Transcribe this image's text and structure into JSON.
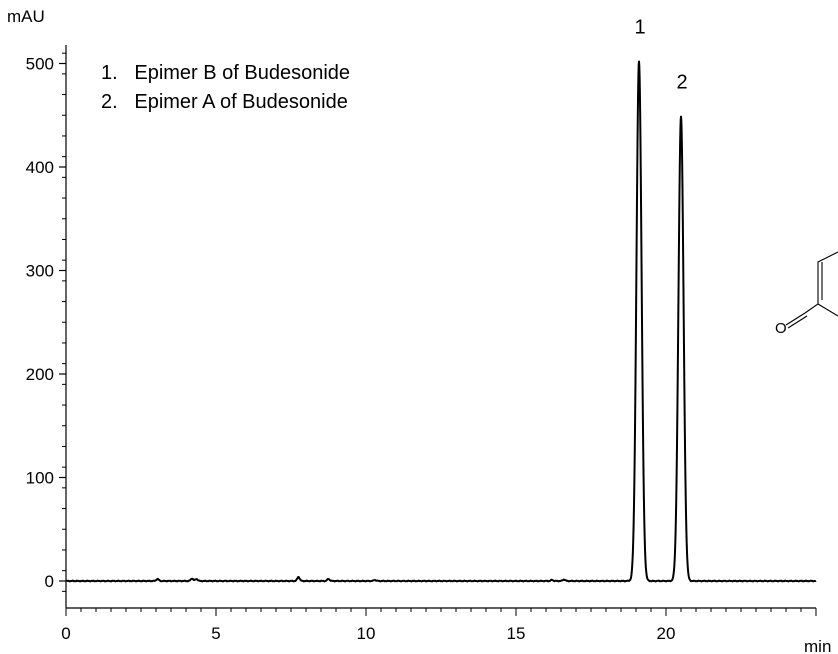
{
  "chart_data": {
    "type": "line",
    "title": "",
    "xlabel": "min",
    "ylabel": "mAU",
    "xlim": [
      0,
      25
    ],
    "ylim": [
      -20,
      520
    ],
    "x_ticks": [
      0,
      5,
      10,
      15,
      20
    ],
    "y_ticks": [
      0,
      100,
      200,
      300,
      400,
      500
    ],
    "x_tick_labels": [
      "0",
      "5",
      "10",
      "15",
      "20"
    ],
    "y_tick_labels": [
      "0",
      "100",
      "200",
      "300",
      "400",
      "500"
    ],
    "grid": false,
    "series": [
      {
        "baseline": 0,
        "peaks": [
          {
            "label": "1",
            "time": 19.1,
            "height": 502,
            "width_sigma": 0.085
          },
          {
            "label": "2",
            "time": 20.5,
            "height": 449,
            "width_sigma": 0.085
          }
        ],
        "minor_peaks": [
          {
            "time": 3.05,
            "height": 2
          },
          {
            "time": 4.2,
            "height": 2.5
          },
          {
            "time": 4.35,
            "height": 2
          },
          {
            "time": 7.75,
            "height": 4
          },
          {
            "time": 8.75,
            "height": 2
          },
          {
            "time": 10.3,
            "height": 1
          },
          {
            "time": 16.2,
            "height": 1
          },
          {
            "time": 16.6,
            "height": 1.5
          }
        ]
      }
    ],
    "legend": {
      "placement": "top-left",
      "entries": [
        "1.   Epimer B of Budesonide",
        "2.   Epimer A of Budesonide"
      ]
    },
    "structure_label": "O",
    "colors": {
      "line": "#000000",
      "axis": "#000000"
    }
  }
}
